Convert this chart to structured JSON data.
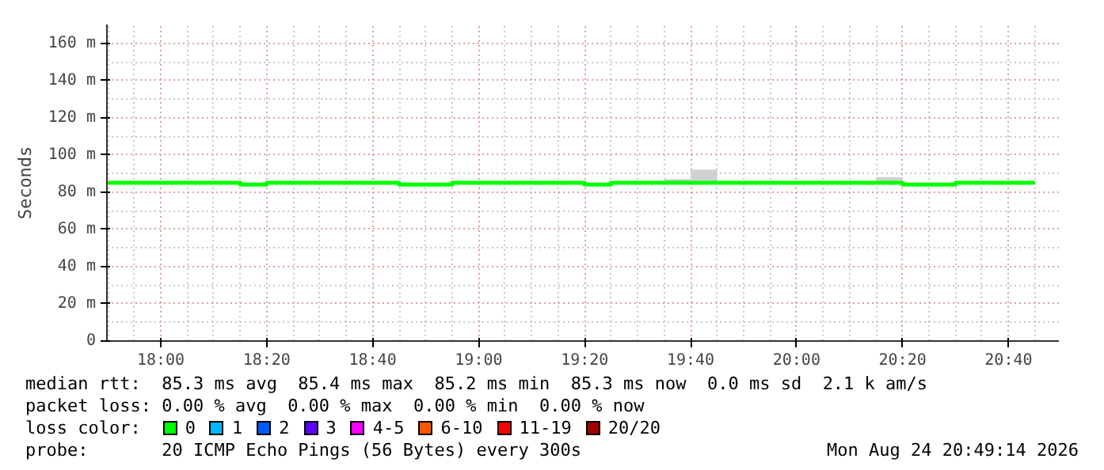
{
  "chart_data": {
    "type": "step",
    "ylabel": "Seconds",
    "x": [
      "2026-08-24T17:50",
      "2026-08-24T17:55",
      "2026-08-24T18:00",
      "2026-08-24T18:05",
      "2026-08-24T18:10",
      "2026-08-24T18:15",
      "2026-08-24T18:20",
      "2026-08-24T18:25",
      "2026-08-24T18:30",
      "2026-08-24T18:35",
      "2026-08-24T18:40",
      "2026-08-24T18:45",
      "2026-08-24T18:50",
      "2026-08-24T18:55",
      "2026-08-24T19:00",
      "2026-08-24T19:05",
      "2026-08-24T19:10",
      "2026-08-24T19:15",
      "2026-08-24T19:20",
      "2026-08-24T19:25",
      "2026-08-24T19:30",
      "2026-08-24T19:35",
      "2026-08-24T19:40",
      "2026-08-24T19:45",
      "2026-08-24T19:50",
      "2026-08-24T19:55",
      "2026-08-24T20:00",
      "2026-08-24T20:05",
      "2026-08-24T20:10",
      "2026-08-24T20:15",
      "2026-08-24T20:20",
      "2026-08-24T20:25",
      "2026-08-24T20:30",
      "2026-08-24T20:35",
      "2026-08-24T20:40",
      "2026-08-24T20:45"
    ],
    "series": [
      {
        "name": "0",
        "color": "#00ff00",
        "values": [
          85,
          85,
          85,
          85,
          85,
          84,
          85,
          85,
          85,
          85,
          85,
          84,
          84,
          85,
          85,
          85,
          85,
          85,
          84,
          85,
          85,
          85,
          85,
          85,
          85,
          85,
          85,
          85,
          85,
          85,
          84,
          84,
          85,
          85,
          85,
          85
        ],
        "lower": [
          null,
          null,
          null,
          null,
          null,
          null,
          null,
          null,
          null,
          null,
          null,
          null,
          null,
          null,
          null,
          null,
          null,
          null,
          null,
          null,
          null,
          85,
          85,
          85,
          null,
          null,
          null,
          null,
          null,
          85,
          85,
          null,
          null,
          null,
          null,
          null
        ],
        "upper": [
          null,
          null,
          null,
          null,
          null,
          null,
          null,
          null,
          null,
          null,
          null,
          null,
          null,
          null,
          null,
          null,
          null,
          null,
          null,
          null,
          null,
          87,
          92,
          92,
          null,
          null,
          null,
          null,
          null,
          88,
          88,
          null,
          null,
          null,
          null,
          null
        ]
      },
      {
        "name": "1",
        "color": "#00b8ff",
        "values": [
          null,
          null,
          null,
          null,
          null,
          null,
          null,
          null,
          null,
          null,
          null,
          null,
          null,
          null,
          null,
          null,
          null,
          null,
          null,
          null,
          null,
          null,
          null,
          null,
          null,
          null,
          null,
          null,
          null,
          null,
          null,
          null,
          null,
          null,
          null,
          null
        ]
      },
      {
        "name": "2",
        "color": "#0059ff",
        "values": [
          null,
          null,
          null,
          null,
          null,
          null,
          null,
          null,
          null,
          null,
          null,
          null,
          null,
          null,
          null,
          null,
          null,
          null,
          null,
          null,
          null,
          null,
          null,
          null,
          null,
          null,
          null,
          null,
          null,
          null,
          null,
          null,
          null,
          null,
          null,
          null
        ]
      },
      {
        "name": "3",
        "color": "#5e00ff",
        "values": [
          null,
          null,
          null,
          null,
          null,
          null,
          null,
          null,
          null,
          null,
          null,
          null,
          null,
          null,
          null,
          null,
          null,
          null,
          null,
          null,
          null,
          null,
          null,
          null,
          null,
          null,
          null,
          null,
          null,
          null,
          null,
          null,
          null,
          null,
          null,
          null
        ]
      },
      {
        "name": "4-5",
        "color": "#ff00ff",
        "values": [
          null,
          null,
          null,
          null,
          null,
          null,
          null,
          null,
          null,
          null,
          null,
          null,
          null,
          null,
          null,
          null,
          null,
          null,
          null,
          null,
          null,
          null,
          null,
          null,
          null,
          null,
          null,
          null,
          null,
          null,
          null,
          null,
          null,
          null,
          null,
          null
        ]
      },
      {
        "name": "6-10",
        "color": "#ff5500",
        "values": [
          null,
          null,
          null,
          null,
          null,
          null,
          null,
          null,
          null,
          null,
          null,
          null,
          null,
          null,
          null,
          null,
          null,
          null,
          null,
          null,
          null,
          null,
          null,
          null,
          null,
          null,
          null,
          null,
          null,
          null,
          null,
          null,
          null,
          null,
          null,
          null
        ]
      },
      {
        "name": "11-19",
        "color": "#ff0000",
        "values": [
          null,
          null,
          null,
          null,
          null,
          null,
          null,
          null,
          null,
          null,
          null,
          null,
          null,
          null,
          null,
          null,
          null,
          null,
          null,
          null,
          null,
          null,
          null,
          null,
          null,
          null,
          null,
          null,
          null,
          null,
          null,
          null,
          null,
          null,
          null,
          null
        ]
      },
      {
        "name": "20/20",
        "color": "#a10000",
        "values": [
          null,
          null,
          null,
          null,
          null,
          null,
          null,
          null,
          null,
          null,
          null,
          null,
          null,
          null,
          null,
          null,
          null,
          null,
          null,
          null,
          null,
          null,
          null,
          null,
          null,
          null,
          null,
          null,
          null,
          null,
          null,
          null,
          null,
          null,
          null,
          null
        ]
      }
    ],
    "legend": "bottom",
    "legend_title": "loss color:",
    "grid": true,
    "ylim": [
      0,
      170
    ],
    "yticks": [
      0,
      {
        "value": 20,
        "label": "20 m"
      },
      {
        "value": 40,
        "label": "40 m"
      },
      {
        "value": 60,
        "label": "60 m"
      },
      {
        "value": 80,
        "label": "80 m"
      },
      {
        "value": 100,
        "label": "100 m"
      },
      {
        "value": 120,
        "label": "120 m"
      },
      {
        "value": 140,
        "label": "140 m"
      },
      {
        "value": 160,
        "label": "160 m"
      }
    ],
    "xlim": [
      "2026-08-24T17:49:50",
      "2026-08-24T20:49:30"
    ],
    "xticks": [
      {
        "value": "2026-08-24T18:00",
        "label": "18:00"
      },
      {
        "value": "2026-08-24T18:20",
        "label": "18:20"
      },
      {
        "value": "2026-08-24T18:40",
        "label": "18:40"
      },
      {
        "value": "2026-08-24T19:00",
        "label": "19:00"
      },
      {
        "value": "2026-08-24T19:20",
        "label": "19:20"
      },
      {
        "value": "2026-08-24T19:40",
        "label": "19:40"
      },
      {
        "value": "2026-08-24T20:00",
        "label": "20:00"
      },
      {
        "value": "2026-08-24T20:20",
        "label": "20:20"
      },
      {
        "value": "2026-08-24T20:40",
        "label": "20:40"
      }
    ],
    "annotations": [
      "median rtt:  85.3 ms avg  85.4 ms max  85.2 ms min  85.3 ms now  0.0 ms sd  2.1 k am/s",
      "packet loss: 0.00 % avg  0.00 % max  0.00 % min  0.00 % now",
      "probe:       20 ICMP Echo Pings (56 Bytes) every 300s",
      "Mon Aug 24 20:49:14 2026"
    ]
  }
}
